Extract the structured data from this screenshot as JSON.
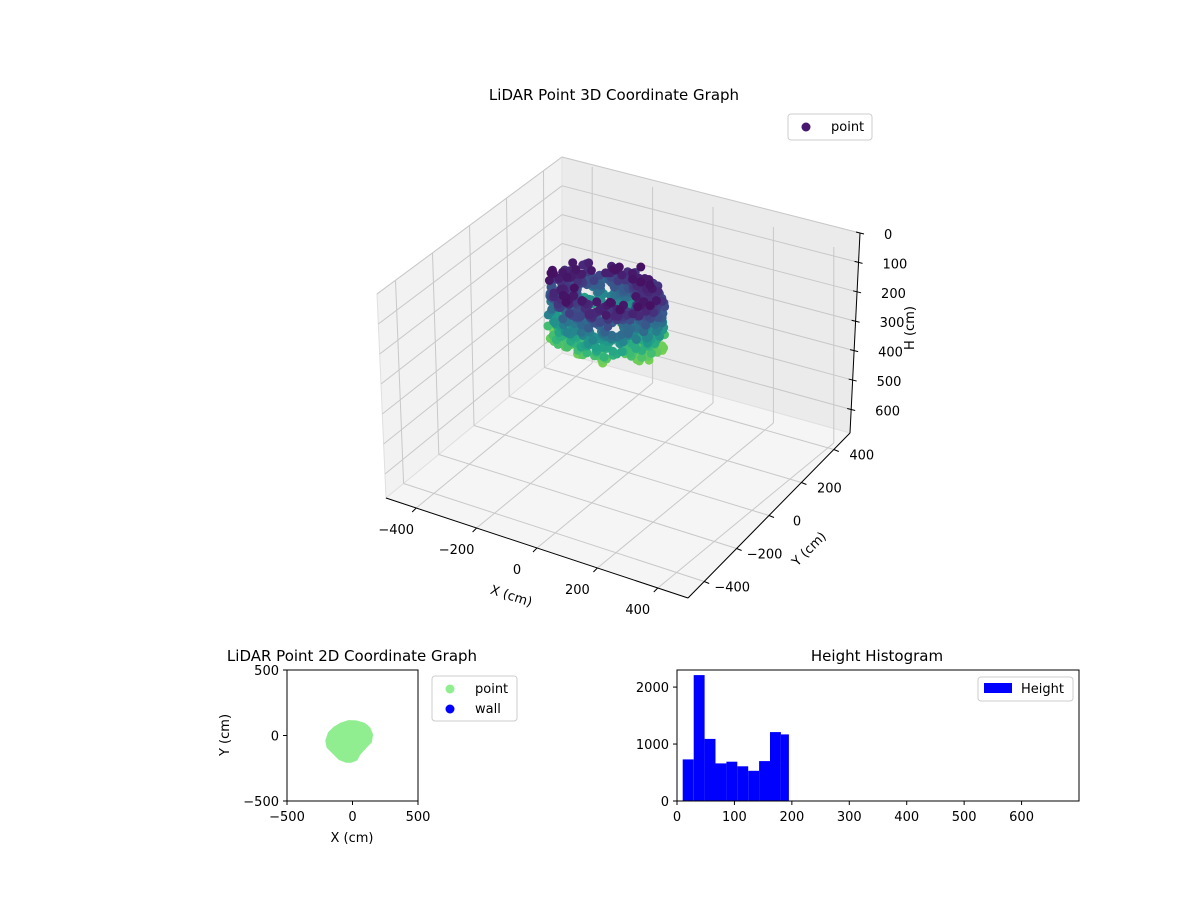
{
  "chart_data": [
    {
      "type": "scatter",
      "projection": "3d",
      "title": "LiDAR Point 3D Coordinate Graph",
      "xlabel": "X (cm)",
      "ylabel": "Y (cm)",
      "zlabel": "H (cm)",
      "xlim": [
        -500,
        500
      ],
      "ylim": [
        -500,
        500
      ],
      "zlim": [
        0,
        680
      ],
      "z_inverted": true,
      "x_ticks": [
        -400,
        -200,
        0,
        200,
        400
      ],
      "y_ticks": [
        -400,
        -200,
        0,
        200,
        400
      ],
      "z_ticks": [
        0,
        100,
        200,
        300,
        400,
        500,
        600
      ],
      "colormap": "viridis",
      "legend": {
        "entries": [
          "point"
        ],
        "placement": "top-right"
      },
      "grid": true,
      "point_cloud": {
        "description_free": true,
        "x_range": [
          -210,
          140
        ],
        "y_range": [
          -200,
          110
        ],
        "h_range": [
          10,
          200
        ]
      }
    },
    {
      "type": "scatter",
      "title": "LiDAR Point 2D Coordinate Graph",
      "xlabel": "X (cm)",
      "ylabel": "Y (cm)",
      "xlim": [
        -500,
        500
      ],
      "ylim": [
        -500,
        500
      ],
      "x_ticks": [
        -500,
        0,
        500
      ],
      "y_ticks": [
        -500,
        0,
        500
      ],
      "series": [
        {
          "name": "point",
          "color": "#90ee90"
        },
        {
          "name": "wall",
          "color": "#0000ff"
        }
      ],
      "point_blob_outline": [
        [
          -200,
          -40
        ],
        [
          -180,
          20
        ],
        [
          -140,
          60
        ],
        [
          -90,
          90
        ],
        [
          -30,
          110
        ],
        [
          30,
          108
        ],
        [
          90,
          90
        ],
        [
          130,
          55
        ],
        [
          150,
          5
        ],
        [
          140,
          -50
        ],
        [
          100,
          -90
        ],
        [
          55,
          -140
        ],
        [
          30,
          -185
        ],
        [
          -10,
          -200
        ],
        [
          -50,
          -200
        ],
        [
          -100,
          -180
        ],
        [
          -150,
          -130
        ],
        [
          -190,
          -90
        ]
      ],
      "legend": {
        "placement": "outside-right"
      }
    },
    {
      "type": "bar",
      "subtype": "histogram",
      "title": "Height Histogram",
      "xlim": [
        0,
        700
      ],
      "ylim": [
        0,
        2300
      ],
      "x_ticks": [
        0,
        100,
        200,
        300,
        400,
        500,
        600
      ],
      "y_ticks": [
        0,
        1000,
        2000
      ],
      "bin_edges": [
        10,
        29,
        48,
        67,
        86,
        105,
        124,
        143,
        162,
        181,
        195
      ],
      "values": [
        730,
        2210,
        1090,
        660,
        690,
        610,
        530,
        700,
        1210,
        1170
      ],
      "color": "#0000ff",
      "series": [
        {
          "name": "Height"
        }
      ],
      "legend": {
        "placement": "top-right"
      }
    }
  ]
}
